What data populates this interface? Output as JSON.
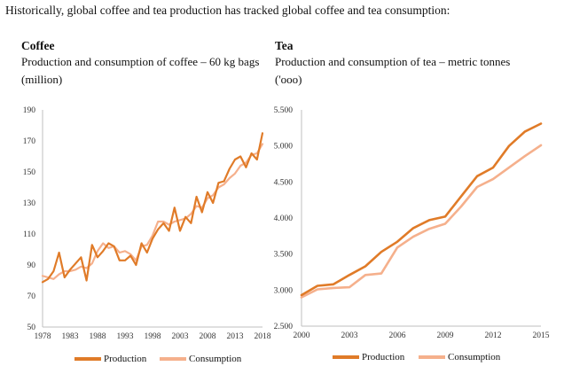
{
  "intro": "Historically, global coffee and tea production has tracked global coffee and tea consumption:",
  "colors": {
    "production": "#E07B28",
    "consumption": "#F5B08C"
  },
  "chart_data": [
    {
      "type": "line",
      "title": "Coffee",
      "subtitle_line1": "Production and consumption of coffee – 60 kg bags",
      "subtitle_line2": "(million)",
      "xlabel": "",
      "ylabel": "",
      "xlim": [
        1978,
        2018
      ],
      "ylim": [
        50,
        190
      ],
      "y_ticks": [
        "190",
        "170",
        "150",
        "130",
        "110",
        "90",
        "70",
        "50"
      ],
      "y_tick_values": [
        190,
        170,
        150,
        130,
        110,
        90,
        70,
        50
      ],
      "x_ticks": [
        "1978",
        "1983",
        "1988",
        "1993",
        "1998",
        "2003",
        "2008",
        "2013",
        "2018"
      ],
      "x_tick_values": [
        1978,
        1983,
        1988,
        1993,
        1998,
        2003,
        2008,
        2013,
        2018
      ],
      "x": [
        1978,
        1979,
        1980,
        1981,
        1982,
        1983,
        1984,
        1985,
        1986,
        1987,
        1988,
        1989,
        1990,
        1991,
        1992,
        1993,
        1994,
        1995,
        1996,
        1997,
        1998,
        1999,
        2000,
        2001,
        2002,
        2003,
        2004,
        2005,
        2006,
        2007,
        2008,
        2009,
        2010,
        2011,
        2012,
        2013,
        2014,
        2015,
        2016,
        2017,
        2018
      ],
      "series": [
        {
          "name": "Production",
          "values": [
            79,
            81,
            86,
            98,
            82,
            87,
            91,
            95,
            80,
            103,
            95,
            99,
            104,
            102,
            93,
            93,
            96,
            90,
            104,
            98,
            107,
            113,
            117,
            112,
            127,
            112,
            121,
            117,
            134,
            124,
            137,
            130,
            143,
            144,
            152,
            158,
            160,
            153,
            162,
            158,
            175
          ]
        },
        {
          "name": "Consumption",
          "values": [
            83,
            82,
            81,
            84,
            86,
            86,
            87,
            89,
            88,
            91,
            99,
            104,
            101,
            102,
            98,
            99,
            97,
            93,
            102,
            103,
            109,
            118,
            118,
            116,
            118,
            119,
            120,
            123,
            128,
            127,
            133,
            135,
            140,
            142,
            146,
            149,
            154,
            156,
            161,
            162,
            168
          ]
        }
      ],
      "legend": [
        "Production",
        "Consumption"
      ],
      "legend_position": "bottom"
    },
    {
      "type": "line",
      "title": "Tea",
      "subtitle_line1": "Production and consumption of tea – metric tonnes",
      "subtitle_line2": "('ooo)",
      "xlabel": "",
      "ylabel": "",
      "xlim": [
        2000,
        2015
      ],
      "ylim": [
        2500,
        5500
      ],
      "y_ticks": [
        "5.500",
        "5.000",
        "4.500",
        "4.000",
        "3.500",
        "3.000",
        "2.500"
      ],
      "y_tick_values": [
        5500,
        5000,
        4500,
        4000,
        3500,
        3000,
        2500
      ],
      "x_ticks": [
        "2000",
        "2003",
        "2006",
        "2009",
        "2012",
        "2015"
      ],
      "x_tick_values": [
        2000,
        2003,
        2006,
        2009,
        2012,
        2015
      ],
      "x": [
        2000,
        2001,
        2002,
        2003,
        2004,
        2005,
        2006,
        2007,
        2008,
        2009,
        2010,
        2011,
        2012,
        2013,
        2014,
        2015
      ],
      "series": [
        {
          "name": "Production",
          "values": [
            2930,
            3060,
            3080,
            3210,
            3330,
            3530,
            3670,
            3860,
            3970,
            4020,
            4300,
            4580,
            4700,
            5000,
            5200,
            5310
          ]
        },
        {
          "name": "Consumption",
          "values": [
            2900,
            3010,
            3030,
            3040,
            3210,
            3230,
            3590,
            3740,
            3850,
            3920,
            4160,
            4430,
            4540,
            4700,
            4860,
            5010
          ]
        }
      ],
      "legend": [
        "Production",
        "Consumption"
      ],
      "legend_position": "bottom"
    }
  ]
}
